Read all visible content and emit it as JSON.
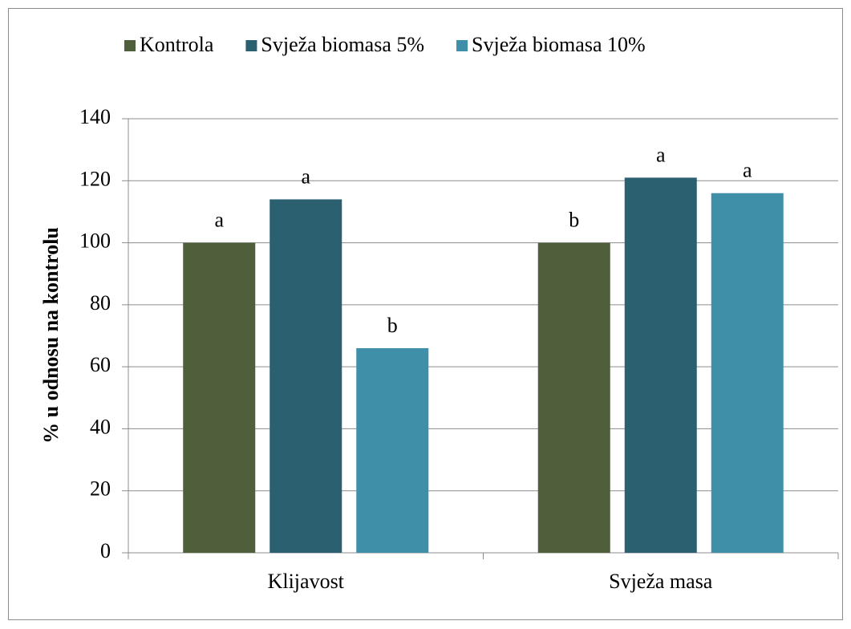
{
  "chart_data": {
    "type": "bar",
    "y_label": "% u odnosu na kontrolu",
    "categories": [
      "Klijavost",
      "Svježa masa"
    ],
    "series": [
      {
        "name": "Kontrola",
        "color": "#4f5f3c",
        "values": [
          100,
          100
        ],
        "annotations": [
          "a",
          "b"
        ]
      },
      {
        "name": "Svježa biomasa 5%",
        "color": "#2b6070",
        "values": [
          114,
          121
        ],
        "annotations": [
          "a",
          "a"
        ]
      },
      {
        "name": "Svježa biomasa 10%",
        "color": "#3f8fa9",
        "values": [
          66,
          116
        ],
        "annotations": [
          "b",
          "a"
        ]
      }
    ],
    "ylim": [
      0,
      140
    ],
    "yticks": [
      0,
      20,
      40,
      60,
      80,
      100,
      120,
      140
    ],
    "grid": true,
    "legend": "top"
  }
}
